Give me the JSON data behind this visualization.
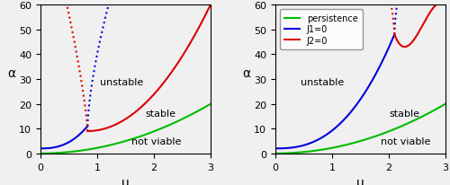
{
  "xlim": [
    0,
    3
  ],
  "ylim": [
    0,
    60
  ],
  "xticks": [
    0,
    1,
    2,
    3
  ],
  "yticks": [
    0,
    10,
    20,
    30,
    40,
    50,
    60
  ],
  "xlabel": "μ",
  "ylabel": "α",
  "colors": {
    "green": "#00bb00",
    "blue": "#0000dd",
    "red": "#dd0000",
    "bg": "#f0f0f0"
  },
  "panel_a": {
    "bif_mu": 0.83,
    "bif_alpha_blue": 11.0,
    "bif_alpha_red": 9.0,
    "text_unstable": [
      1.05,
      28
    ],
    "text_stable": [
      1.85,
      15
    ],
    "text_not_viable": [
      1.6,
      4
    ]
  },
  "panel_b": {
    "bif_mu": 2.1,
    "bif_alpha": 48.0,
    "red_min_mu": 2.28,
    "red_min_alpha": 43.0,
    "text_unstable": [
      0.45,
      28
    ],
    "text_stable": [
      2.0,
      15
    ],
    "text_not_viable": [
      1.85,
      4
    ]
  },
  "legend_labels": [
    "persistence",
    "J1=0",
    "J2=0"
  ],
  "figsize": [
    5.0,
    2.07
  ],
  "dpi": 100
}
